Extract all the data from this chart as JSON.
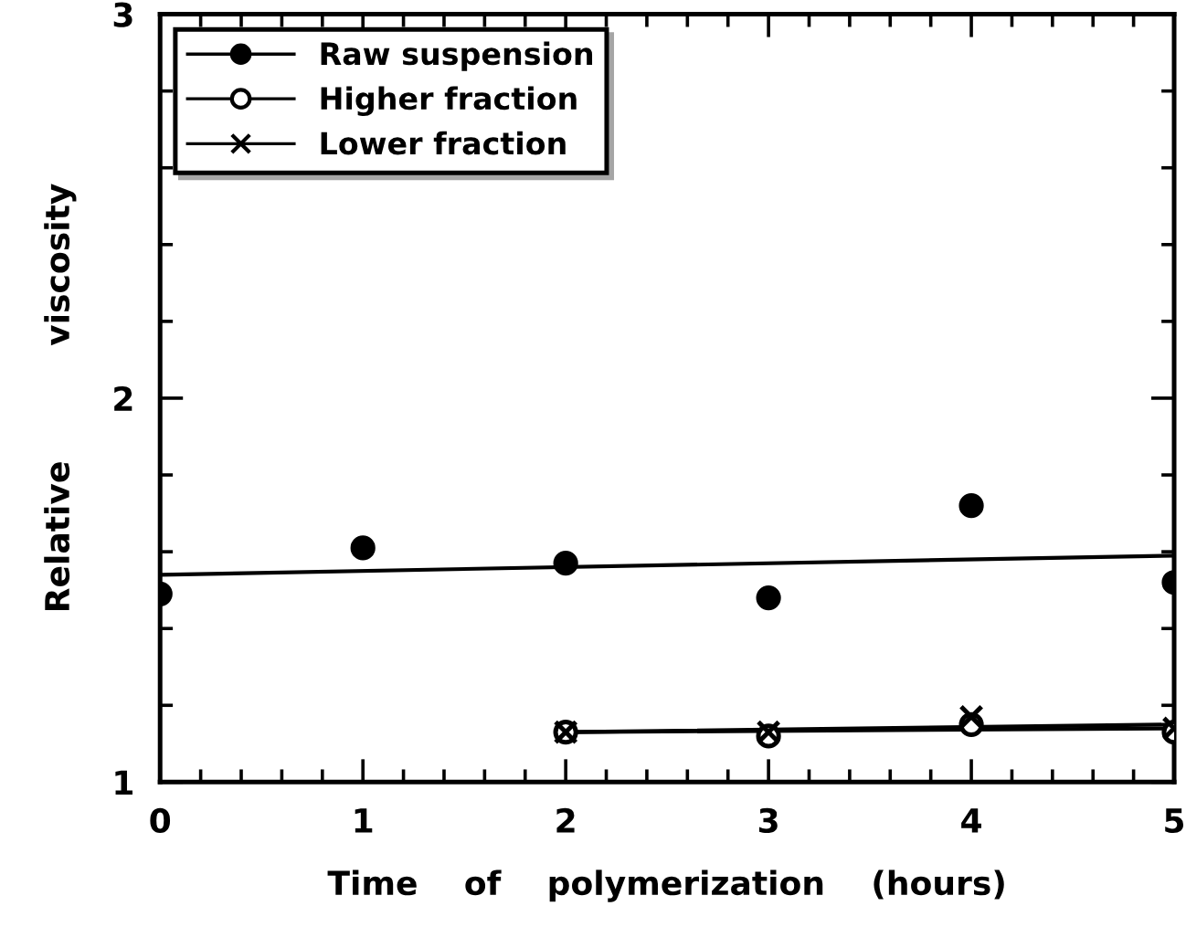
{
  "chart_data": {
    "type": "scatter",
    "xlabel": "Time    of    polymerization    (hours)",
    "ylabel": "Relative          viscosity",
    "xlim": [
      0,
      5
    ],
    "xticks": [
      0,
      1,
      2,
      3,
      4,
      5
    ],
    "ylim": [
      1,
      3
    ],
    "yticks": [
      1,
      2,
      3
    ],
    "grid": false,
    "legend": "top left",
    "series": [
      {
        "name": "Raw suspension",
        "color": "#000000",
        "marker": "circle",
        "x": [
          0,
          1,
          2,
          3,
          4,
          5
        ],
        "values": [
          1.49,
          1.61,
          1.57,
          1.48,
          1.72,
          1.52
        ]
      },
      {
        "name": "Higher fraction",
        "color": "#000000",
        "marker": "circle_open",
        "x": [
          2,
          3,
          4,
          5
        ],
        "values": [
          1.13,
          1.12,
          1.15,
          1.13
        ]
      },
      {
        "name": "Lower fraction",
        "color": "#000000",
        "marker": "cross",
        "x": [
          2,
          3,
          4,
          5
        ],
        "values": [
          1.13,
          1.13,
          1.17,
          1.14
        ]
      },
      {
        "type": "line",
        "color": "#000000",
        "marker": "none",
        "x": [
          0,
          5
        ],
        "values": [
          1.54,
          1.59
        ]
      },
      {
        "type": "line",
        "color": "#000000",
        "marker": "none",
        "x": [
          2,
          5
        ],
        "values": [
          1.13,
          1.15
        ]
      },
      {
        "type": "line",
        "color": "#000000",
        "marker": "none",
        "x": [
          2,
          5
        ],
        "values": [
          1.13,
          1.14
        ]
      }
    ]
  }
}
